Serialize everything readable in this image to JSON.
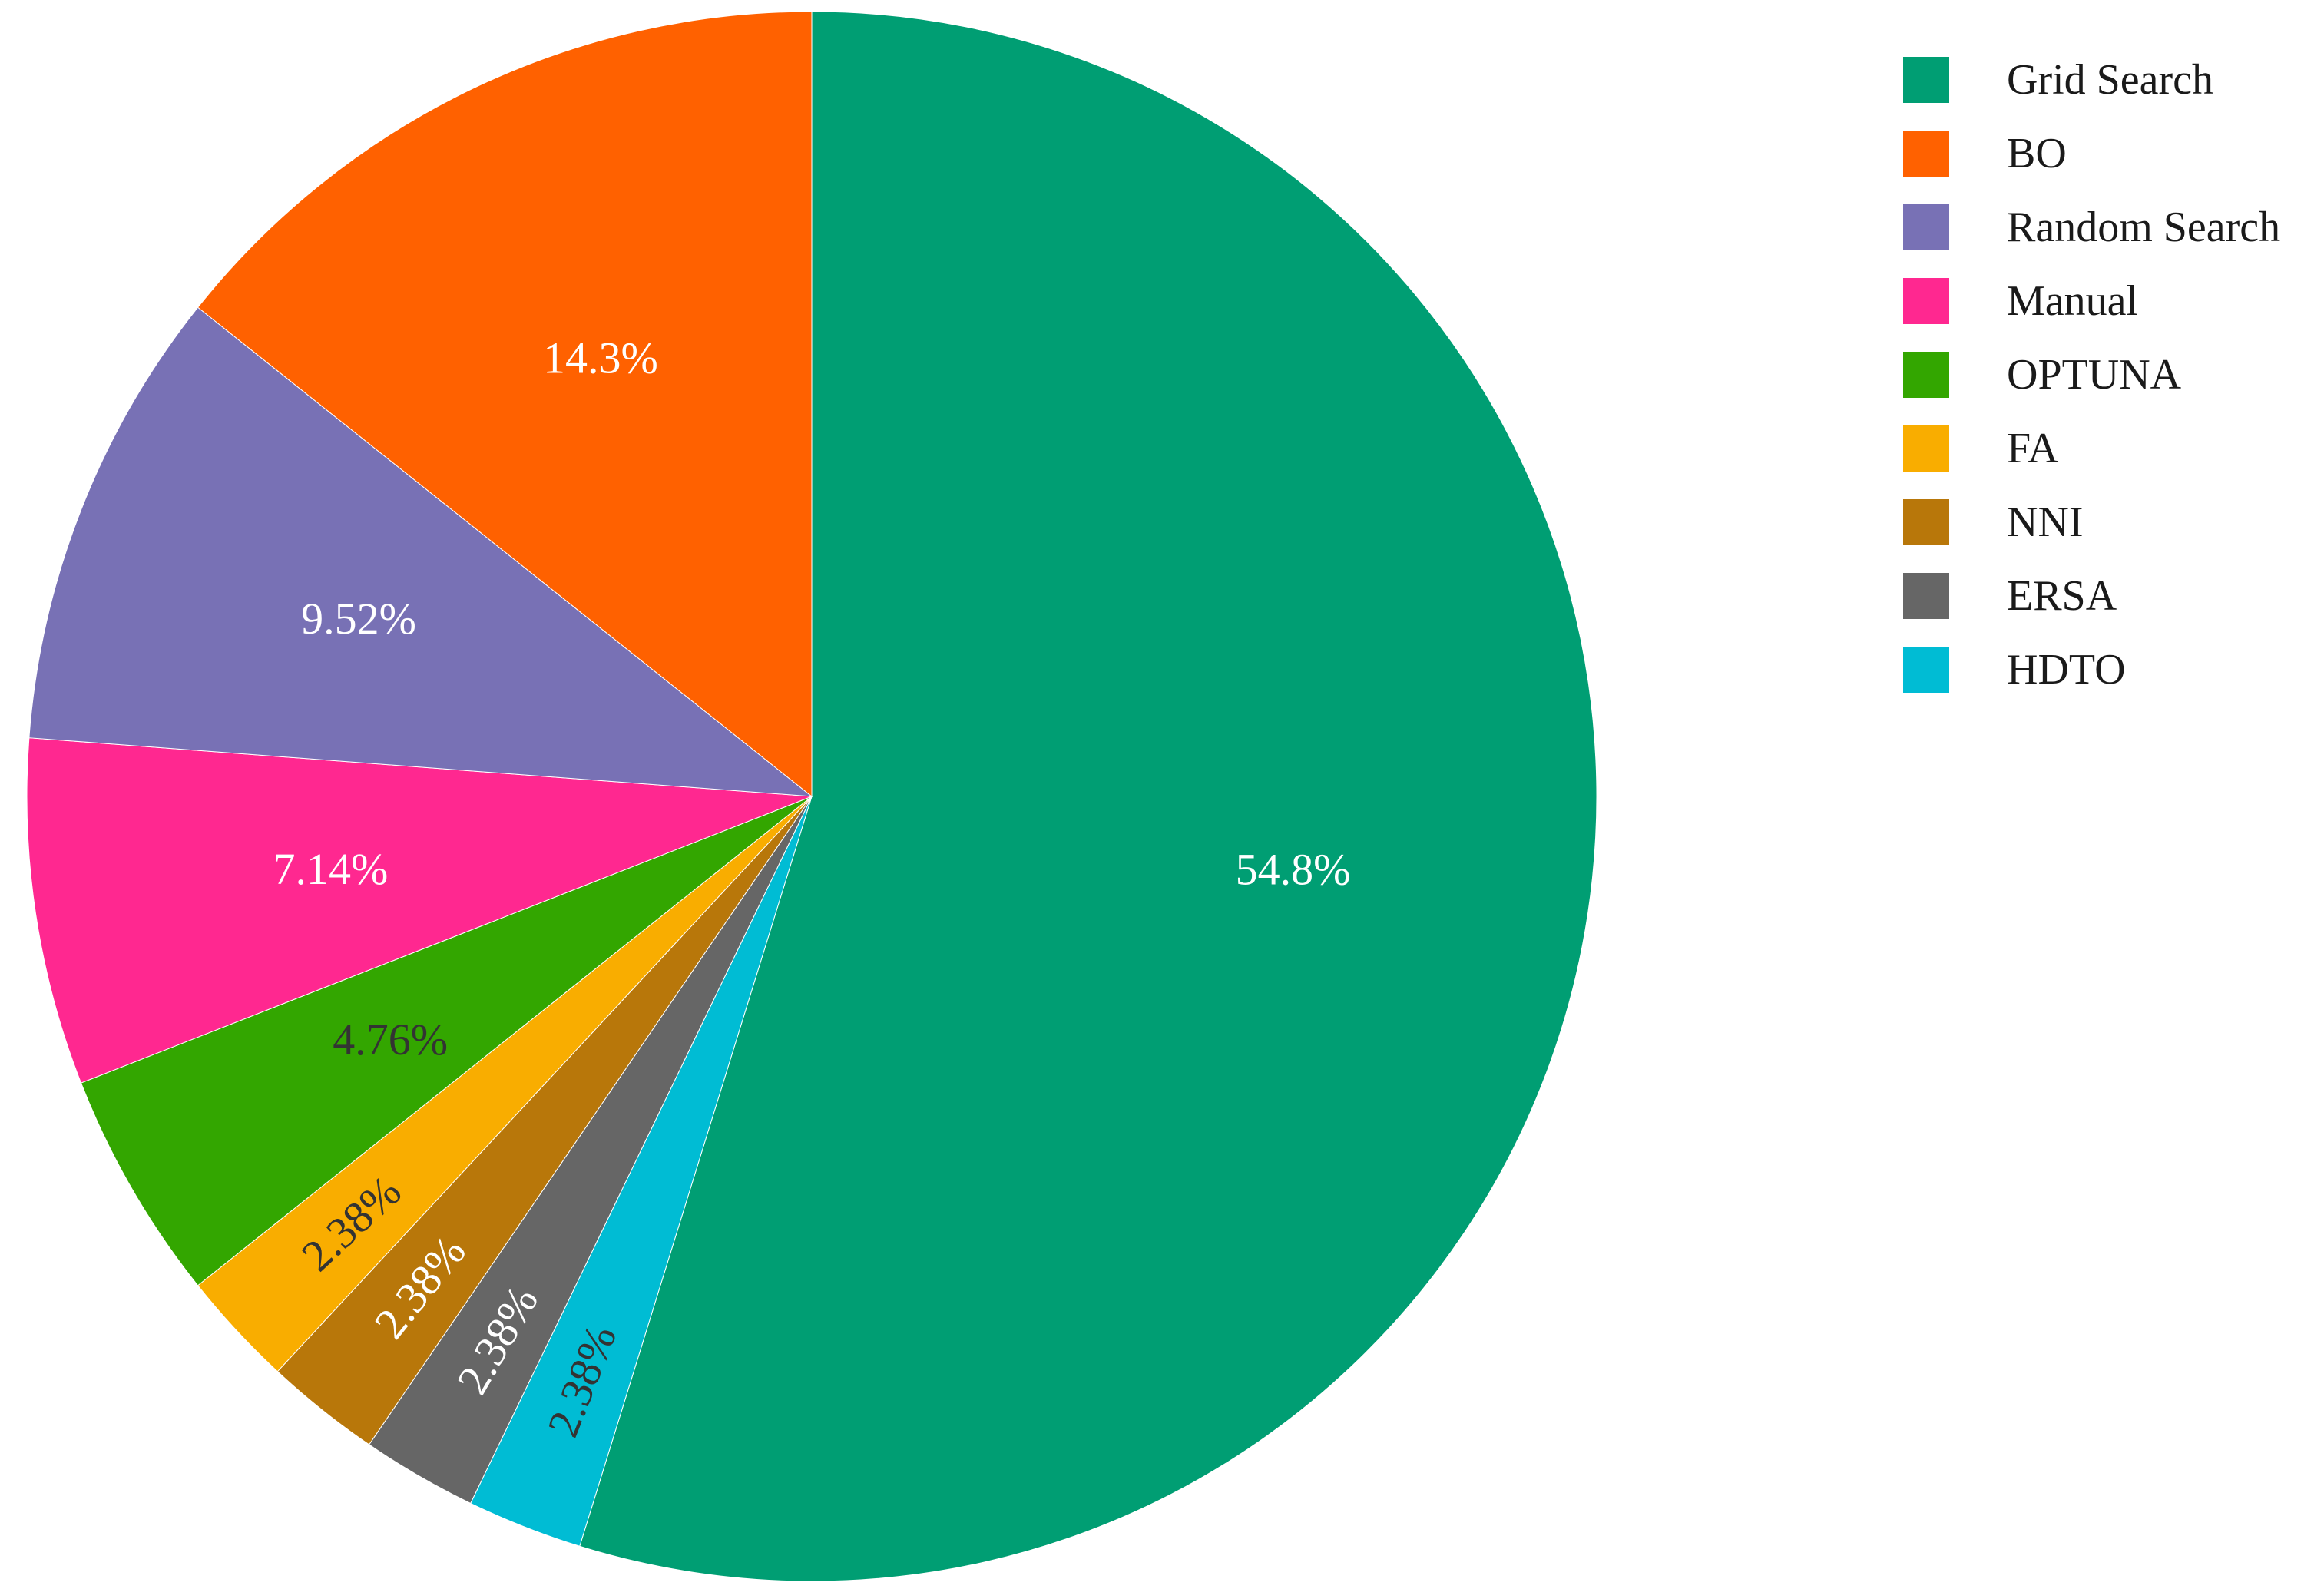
{
  "chart_data": {
    "type": "pie",
    "title": "",
    "start": "12 o'clock",
    "direction": "clockwise",
    "slices": [
      {
        "label": "Grid Search",
        "value": 54.8,
        "display": "54.8%",
        "color": "#009E73",
        "text_color": "#ffffff",
        "label_rotated": false
      },
      {
        "label": "HDTO",
        "value": 2.38,
        "display": "2.38%",
        "color": "#00BCD4",
        "text_color": "#333333",
        "label_rotated": true
      },
      {
        "label": "ERSA",
        "value": 2.38,
        "display": "2.38%",
        "color": "#666666",
        "text_color": "#ffffff",
        "label_rotated": true
      },
      {
        "label": "NNI",
        "value": 2.38,
        "display": "2.38%",
        "color": "#B8770A",
        "text_color": "#ffffff",
        "label_rotated": true
      },
      {
        "label": "FA",
        "value": 2.38,
        "display": "2.38%",
        "color": "#F9AD00",
        "text_color": "#333333",
        "label_rotated": true
      },
      {
        "label": "OPTUNA",
        "value": 4.76,
        "display": "4.76%",
        "color": "#33A600",
        "text_color": "#333333",
        "label_rotated": false
      },
      {
        "label": "Manual",
        "value": 7.14,
        "display": "7.14%",
        "color": "#FF2890",
        "text_color": "#ffffff",
        "label_rotated": false
      },
      {
        "label": "Random Search",
        "value": 9.52,
        "display": "9.52%",
        "color": "#7871B5",
        "text_color": "#ffffff",
        "label_rotated": false
      },
      {
        "label": "BO",
        "value": 14.3,
        "display": "14.3%",
        "color": "#FF6100",
        "text_color": "#ffffff",
        "label_rotated": false
      }
    ],
    "legend": {
      "placement": "top-right",
      "entries": [
        "Grid Search",
        "BO",
        "Random Search",
        "Manual",
        "OPTUNA",
        "FA",
        "NNI",
        "ERSA",
        "HDTO"
      ]
    }
  }
}
